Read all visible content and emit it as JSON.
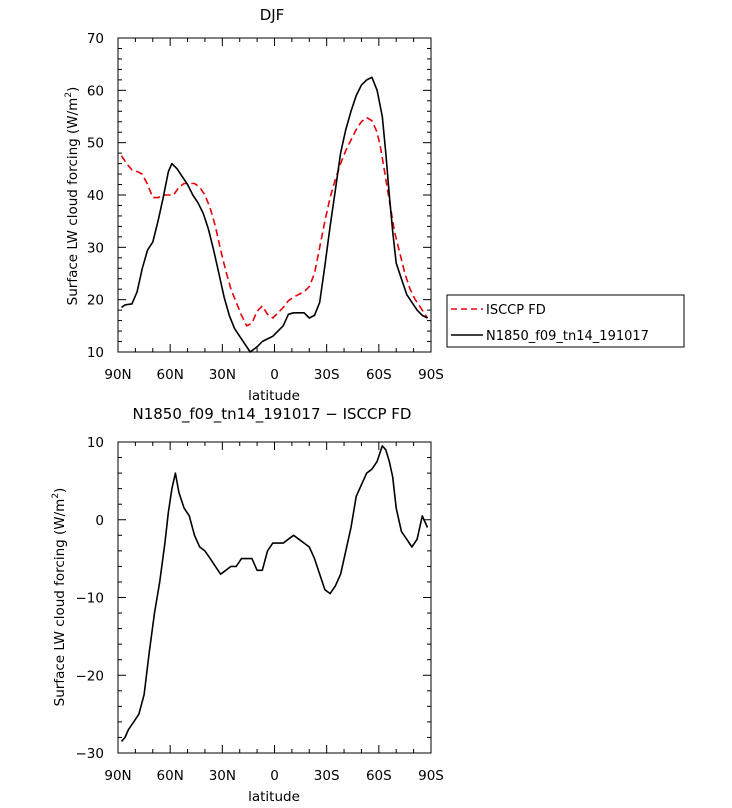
{
  "chart_data": [
    {
      "type": "line",
      "title": "DJF",
      "xlabel": "latitude",
      "ylabel": "Surface LW cloud forcing (W/m",
      "ylabel_sup": "2",
      "ylabel_end": ")",
      "xlim": [
        -90,
        90
      ],
      "ylim": [
        10,
        70
      ],
      "xticks": [
        -90,
        -60,
        -30,
        0,
        30,
        60,
        90
      ],
      "xtick_labels": [
        "90N",
        "60N",
        "30N",
        "0",
        "30S",
        "60S",
        "90S"
      ],
      "yticks": [
        10,
        20,
        30,
        40,
        50,
        60,
        70
      ],
      "ytick_labels": [
        "10",
        "20",
        "30",
        "40",
        "50",
        "60",
        "70"
      ],
      "legend_position": "right",
      "series": [
        {
          "name": "ISCCP FD",
          "color": "#e8000b",
          "dash": "dashed",
          "x": [
            -88,
            -85,
            -82,
            -79,
            -76,
            -73,
            -70,
            -67,
            -64,
            -61,
            -58,
            -55,
            -52,
            -49,
            -46,
            -43,
            -40,
            -37,
            -34,
            -31,
            -28,
            -25,
            -22,
            -19,
            -16,
            -13,
            -10,
            -7,
            -4,
            -1,
            2,
            5,
            8,
            11,
            14,
            17,
            20,
            23,
            26,
            29,
            32,
            35,
            38,
            41,
            44,
            47,
            50,
            53,
            56,
            59,
            61,
            63,
            66,
            69,
            72,
            75,
            78,
            81,
            84,
            86,
            88
          ],
          "y": [
            47.5,
            46,
            44.8,
            44.5,
            44,
            42,
            39.5,
            39.5,
            40,
            40,
            40,
            41.5,
            42.2,
            42.2,
            42.2,
            41.5,
            40,
            37.5,
            34,
            29.5,
            25.5,
            22,
            19.5,
            17,
            15,
            15.5,
            17.8,
            18.8,
            17.2,
            16.5,
            17.5,
            18.5,
            19.8,
            20.5,
            21,
            21.5,
            22.5,
            25,
            30,
            35,
            39.5,
            43,
            46,
            48.5,
            50.5,
            52.5,
            54,
            54.8,
            54.2,
            52,
            49,
            45,
            39,
            33,
            29,
            25,
            22,
            20,
            18.5,
            17.5,
            16.5
          ]
        },
        {
          "name": "N1850_f09_tn14_191017",
          "color": "#000000",
          "dash": "solid",
          "x": [
            -88,
            -86,
            -82,
            -79,
            -76,
            -73,
            -70,
            -67,
            -64,
            -61,
            -59,
            -56,
            -53,
            -50,
            -47,
            -44,
            -41,
            -38,
            -35,
            -32,
            -29,
            -26,
            -23,
            -20,
            -17,
            -14,
            -12,
            -10,
            -7,
            -4,
            -1,
            2,
            5,
            8,
            11,
            14,
            17,
            20,
            23,
            26,
            29,
            32,
            35,
            38,
            41,
            44,
            47,
            50,
            53,
            56,
            59,
            62,
            64,
            66,
            68,
            70,
            73,
            76,
            79,
            82,
            85,
            88
          ],
          "y": [
            18.5,
            19,
            19.2,
            21.5,
            26,
            29.5,
            31,
            35,
            39.5,
            44.5,
            46,
            45,
            43.5,
            42,
            40,
            38.5,
            36.5,
            33.5,
            29.5,
            25,
            20.5,
            17,
            14.5,
            13,
            11.5,
            10,
            10.5,
            11,
            12,
            12.5,
            13,
            14,
            15,
            17.2,
            17.5,
            17.5,
            17.5,
            16.5,
            17,
            19.5,
            26.5,
            34,
            41,
            48,
            52.5,
            56,
            59,
            61,
            62,
            62.5,
            60,
            55,
            48,
            40,
            33,
            27,
            24,
            21,
            19.5,
            18,
            17,
            16.5
          ]
        }
      ]
    },
    {
      "type": "line",
      "title": "N1850_f09_tn14_191017 − ISCCP FD",
      "xlabel": "latitude",
      "ylabel": "Surface LW cloud forcing (W/m",
      "ylabel_sup": "2",
      "ylabel_end": ")",
      "xlim": [
        -90,
        90
      ],
      "ylim": [
        -30,
        10
      ],
      "xticks": [
        -90,
        -60,
        -30,
        0,
        30,
        60,
        90
      ],
      "xtick_labels": [
        "90N",
        "60N",
        "30N",
        "0",
        "30S",
        "60S",
        "90S"
      ],
      "yticks": [
        -30,
        -20,
        -10,
        0,
        10
      ],
      "ytick_labels": [
        "−30",
        "−20",
        "−10",
        "0",
        "10"
      ],
      "series": [
        {
          "color": "#000000",
          "dash": "solid",
          "x": [
            -88,
            -86,
            -84,
            -81,
            -78,
            -75,
            -72,
            -69,
            -66,
            -63,
            -61,
            -59,
            -57,
            -55,
            -52,
            -49,
            -46,
            -43,
            -40,
            -37,
            -34,
            -31,
            -28,
            -25,
            -22,
            -19,
            -16,
            -13,
            -10,
            -7,
            -4,
            -1,
            2,
            5,
            8,
            11,
            14,
            17,
            20,
            23,
            26,
            29,
            32,
            35,
            38,
            41,
            44,
            47,
            50,
            53,
            56,
            59,
            62,
            64,
            66,
            68,
            70,
            73,
            76,
            79,
            82,
            85,
            88
          ],
          "y": [
            -28.5,
            -28,
            -27,
            -26,
            -25,
            -22.5,
            -17,
            -12,
            -8,
            -3,
            1,
            4,
            6,
            3.5,
            1.5,
            0.5,
            -2,
            -3.5,
            -4,
            -5,
            -6,
            -7,
            -6.5,
            -6,
            -6,
            -5,
            -5,
            -5,
            -6.5,
            -6.5,
            -4,
            -3,
            -3,
            -3,
            -2.5,
            -2,
            -2.5,
            -3,
            -3.5,
            -5,
            -7,
            -9,
            -9.5,
            -8.5,
            -7,
            -4,
            -1,
            3,
            4.5,
            6,
            6.5,
            7.5,
            9.5,
            9,
            7.5,
            5.5,
            1.5,
            -1.5,
            -2.5,
            -3.5,
            -2.5,
            0.5,
            -1
          ]
        }
      ]
    }
  ]
}
